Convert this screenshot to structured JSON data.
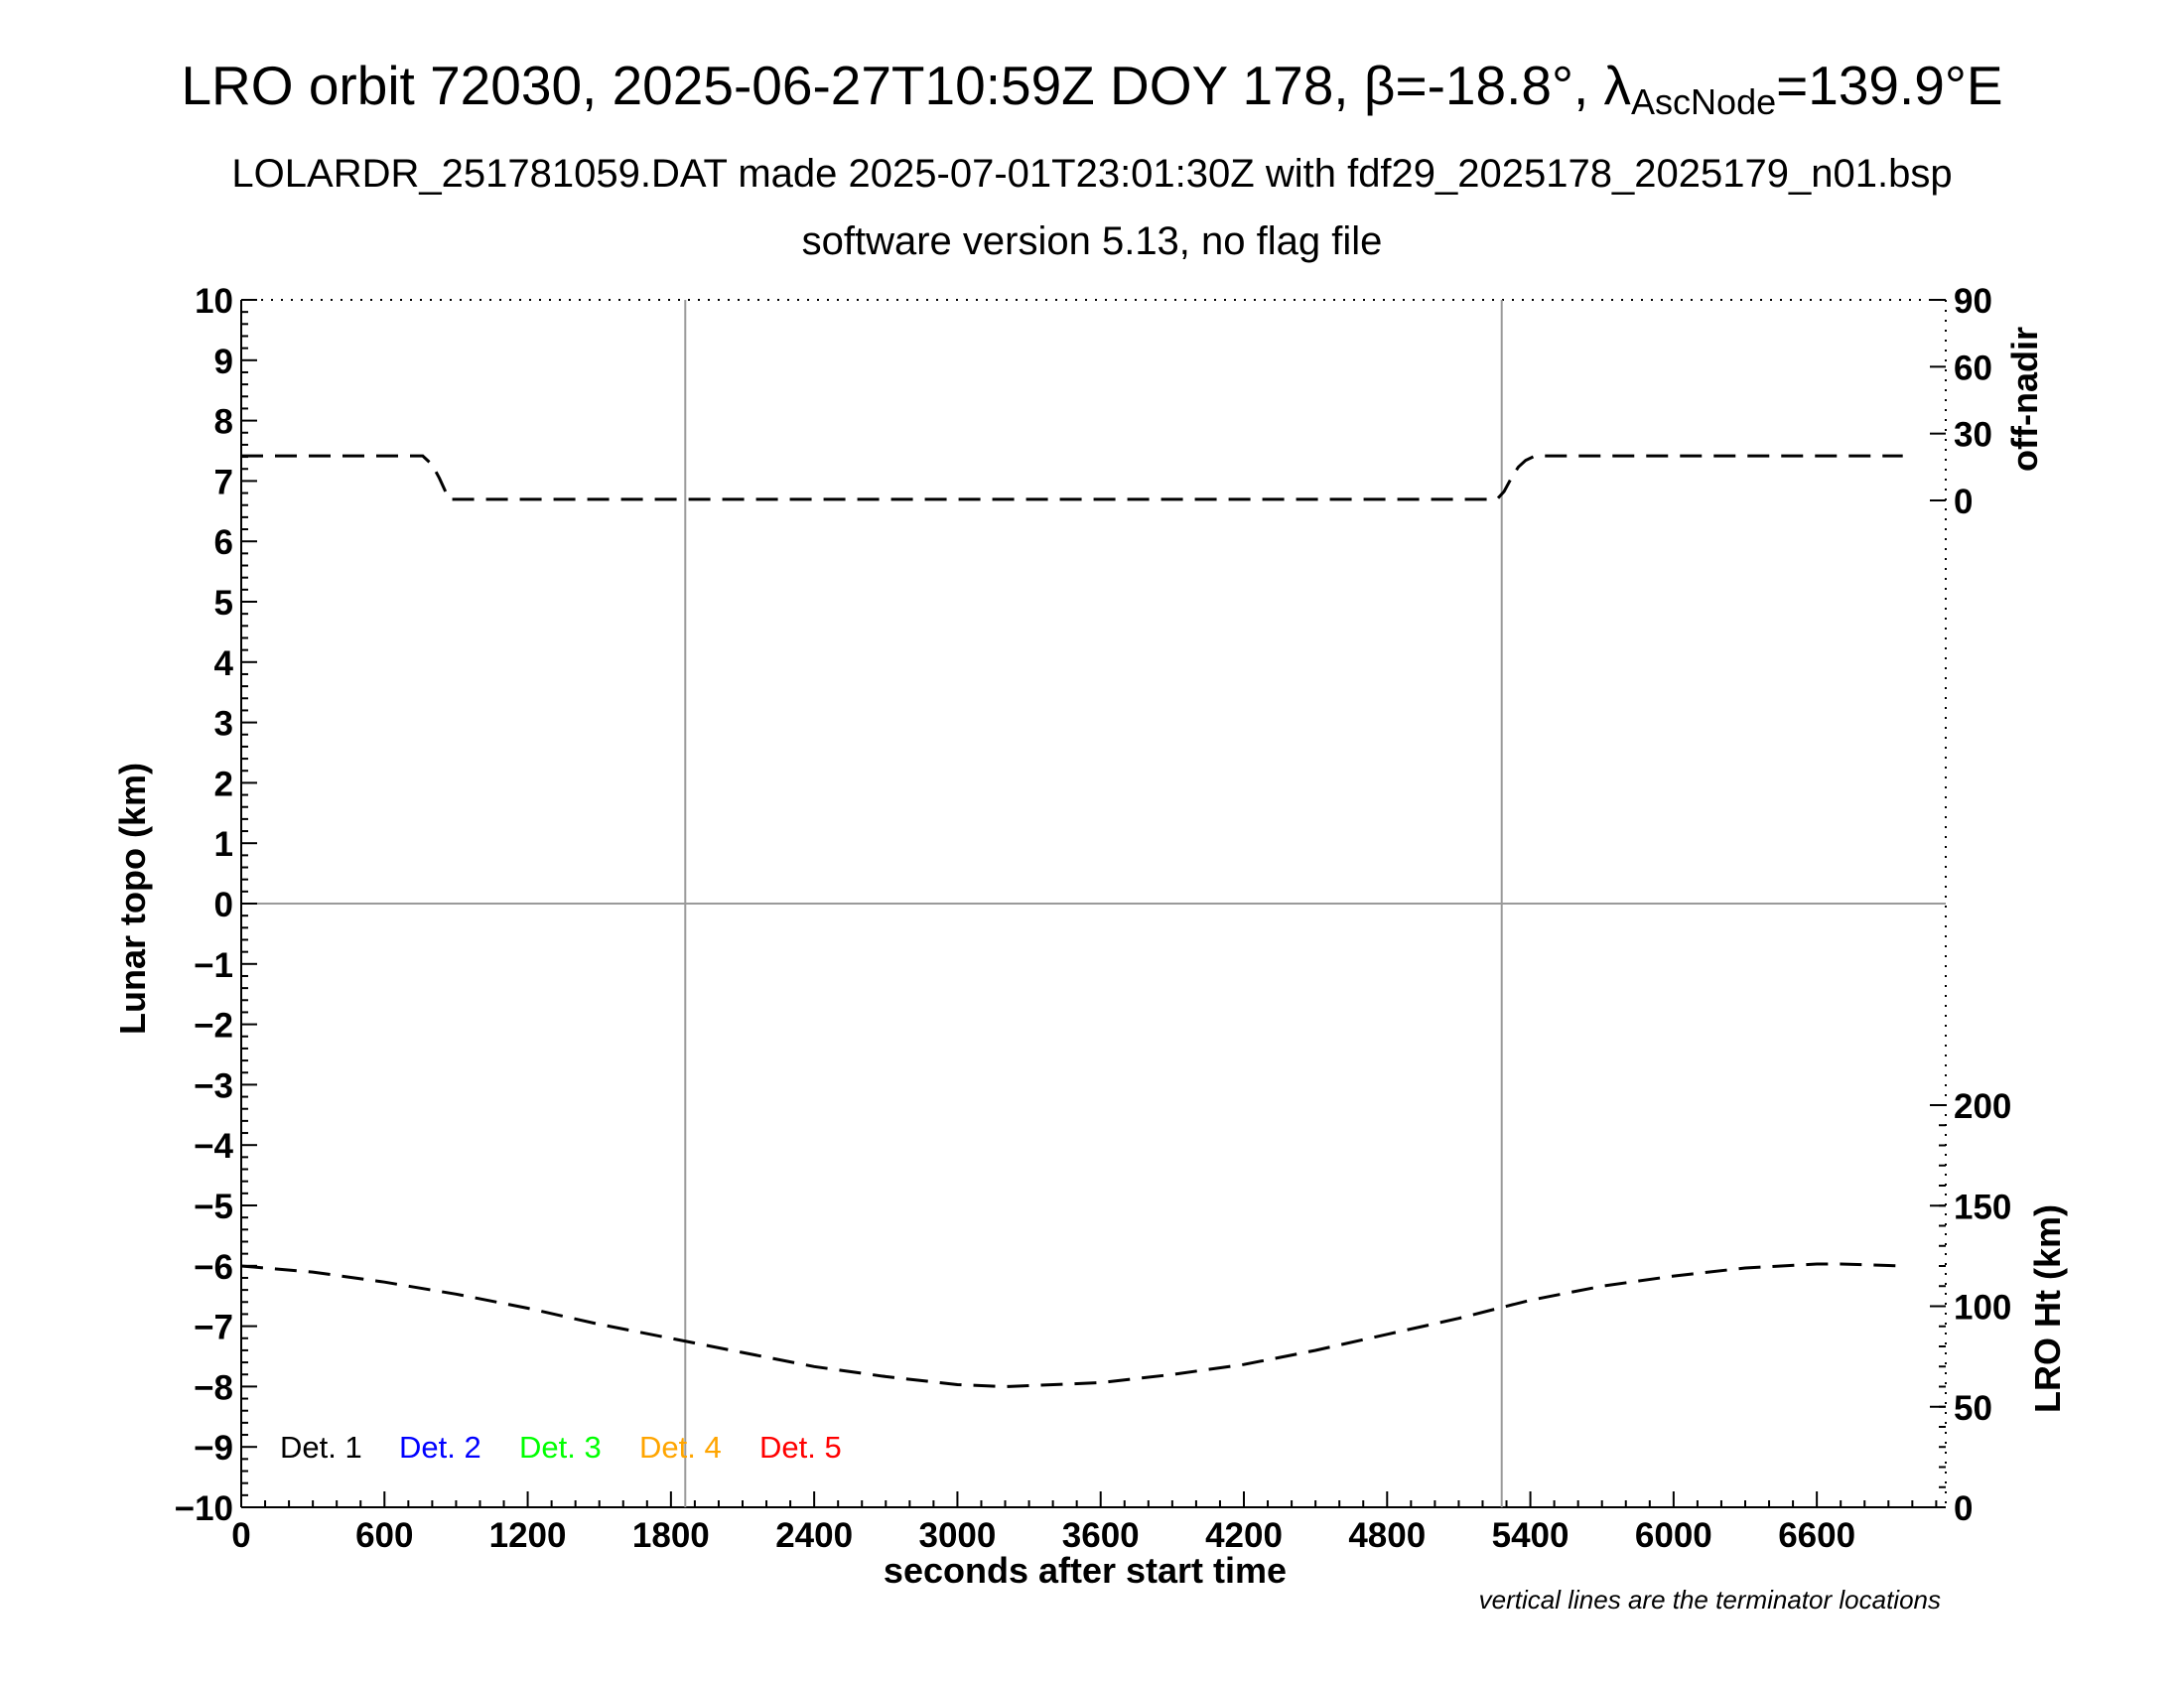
{
  "chart_data": {
    "type": "line",
    "title_prefix": "LRO orbit 72030, 2025-06-27T10:59Z DOY 178, ",
    "title_beta": "β=-18.8°, ",
    "title_lambda": "λ",
    "title_lambda_sub": "AscNode",
    "title_lambda_rest": "=139.9°E",
    "subtitle1": "LOLARDR_251781059.DAT made 2025-07-01T23:01:30Z with fdf29_2025178_2025179_n01.bsp",
    "subtitle2": "software version 5.13, no flag file",
    "xlabel": "seconds after start time",
    "ylabel_left": "Lunar topo (km)",
    "ylabel_right_top": "off-nadir",
    "ylabel_right_bottom": "LRO Ht (km)",
    "xlim": [
      0,
      7140
    ],
    "ylim_left": [
      -10,
      10
    ],
    "x_ticks": [
      "0",
      "600",
      "1200",
      "1800",
      "2400",
      "3000",
      "3600",
      "4200",
      "4800",
      "5400",
      "6000",
      "6600"
    ],
    "y_ticks_left": [
      "10",
      "9",
      "8",
      "7",
      "6",
      "5",
      "4",
      "3",
      "2",
      "1",
      "0",
      "−1",
      "−2",
      "−3",
      "−4",
      "−5",
      "−6",
      "−7",
      "−8",
      "−9",
      "−10"
    ],
    "y_ticks_right_offnadir": [
      "90",
      "60",
      "30",
      "0"
    ],
    "y_ticks_right_height": [
      "200",
      "150",
      "100",
      "50",
      "0"
    ],
    "terminator_lines_x": [
      1860,
      5280
    ],
    "zero_line_y": 0,
    "grid": false,
    "legend": {
      "placement": "bottom-left",
      "entries": [
        {
          "label": "Det. 1",
          "color": "#000000"
        },
        {
          "label": "Det. 2",
          "color": "#0000ff"
        },
        {
          "label": "Det. 3",
          "color": "#00ff00"
        },
        {
          "label": "Det. 4",
          "color": "#ffa500"
        },
        {
          "label": "Det. 5",
          "color": "#ff0000"
        }
      ]
    },
    "series": [
      {
        "axis": "off-nadir (deg)",
        "style": "dashed",
        "color": "#000000",
        "x": [
          0,
          300,
          600,
          760,
          800,
          830,
          860,
          870,
          1000,
          1800,
          2400,
          3000,
          3600,
          4200,
          4800,
          5260,
          5290,
          5320,
          5350,
          5380,
          5420,
          5800,
          6400,
          6960
        ],
        "y": [
          20,
          20,
          20,
          20,
          16,
          10,
          3,
          0.5,
          0.5,
          0.5,
          0.5,
          0.5,
          0.5,
          0.5,
          0.5,
          0.5,
          4,
          10,
          15,
          18,
          20,
          20,
          20,
          20
        ]
      },
      {
        "axis": "LRO Ht (km)",
        "style": "dashed",
        "color": "#000000",
        "x": [
          0,
          300,
          600,
          900,
          1200,
          1500,
          1800,
          2100,
          2400,
          2700,
          3000,
          3200,
          3600,
          3900,
          4200,
          4500,
          4800,
          5100,
          5400,
          5700,
          6000,
          6300,
          6600,
          6700,
          6960
        ],
        "y": [
          120,
          117,
          112,
          106,
          99,
          91,
          84,
          77,
          70,
          65,
          61,
          60,
          62,
          66,
          71,
          78,
          86,
          94,
          103,
          110,
          115,
          119,
          121,
          121,
          120
        ]
      }
    ],
    "note": "vertical lines are the terminator locations"
  }
}
